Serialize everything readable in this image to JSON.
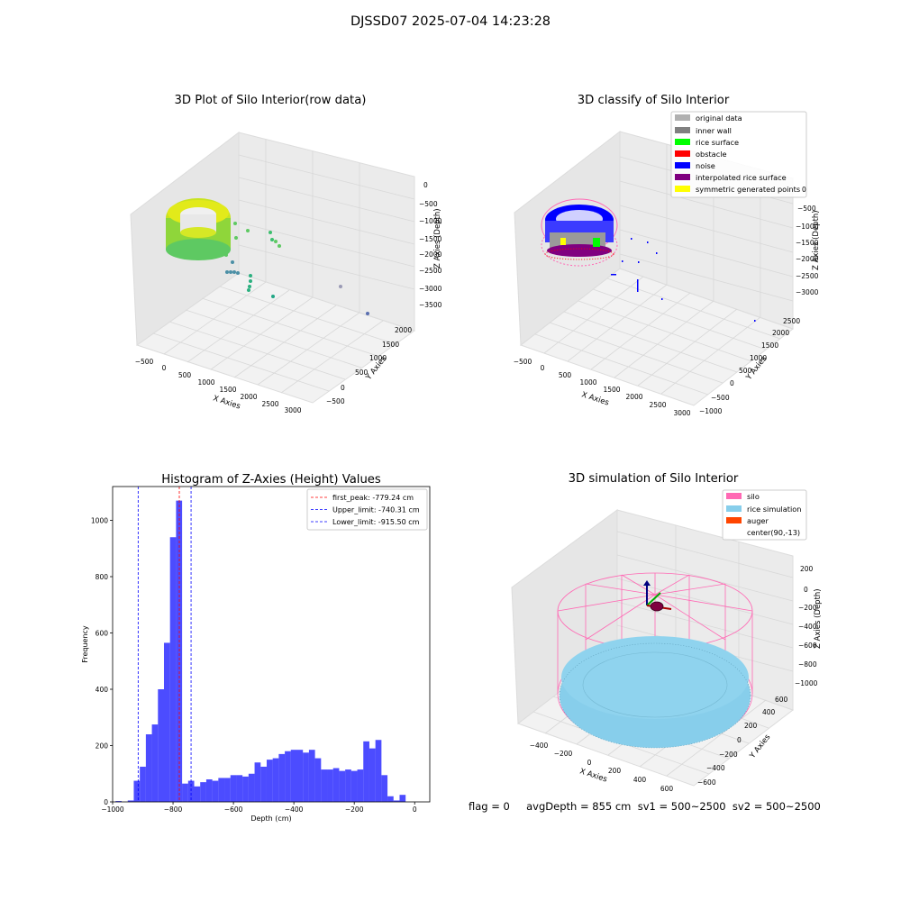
{
  "figure": {
    "suptitle": "DJSSD07 2025-07-04 14:23:28"
  },
  "panels": {
    "raw": {
      "title": "3D Plot of Silo Interior(row data)",
      "xlabel": "X Axies",
      "ylabel": "Y Axies",
      "zlabel": "Z Axies (Depth)",
      "xticks": [
        "−500",
        "0",
        "500",
        "1000",
        "1500",
        "2000",
        "2500",
        "3000"
      ],
      "yticks": [
        "−500",
        "0",
        "500",
        "1000",
        "1500",
        "2000"
      ],
      "zticks": [
        "0",
        "−500",
        "−1000",
        "−1500",
        "−2000",
        "−2500",
        "−3000",
        "−3500"
      ]
    },
    "classify": {
      "title": "3D classify of Silo Interior",
      "xlabel": "X Axies",
      "ylabel": "Y Axies",
      "zlabel": "Z Axies (Depth)",
      "xticks": [
        "−500",
        "0",
        "500",
        "1000",
        "1500",
        "2000",
        "2500",
        "3000"
      ],
      "yticks": [
        "−1000",
        "−500",
        "0",
        "500",
        "1000",
        "1500",
        "2000",
        "2500"
      ],
      "zticks": [
        "0",
        "−500",
        "−1000",
        "−1500",
        "−2000",
        "−2500",
        "−3000"
      ],
      "legend": [
        {
          "label": "original data",
          "color": "#b0b0b0"
        },
        {
          "label": "inner wall",
          "color": "#808080"
        },
        {
          "label": "rice surface",
          "color": "#00ff00"
        },
        {
          "label": "obstacle",
          "color": "#ff0000"
        },
        {
          "label": "noise",
          "color": "#0000ff"
        },
        {
          "label": "interpolated rice surface",
          "color": "#800080"
        },
        {
          "label": "symmetric generated points",
          "color": "#ffff00"
        }
      ]
    },
    "simulation": {
      "title": "3D simulation of Silo Interior",
      "xlabel": "X Axies",
      "ylabel": "Y Axies",
      "zlabel": "Z Axies (Depth)",
      "xticks": [
        "−400",
        "−200",
        "0",
        "200",
        "400",
        "600"
      ],
      "yticks": [
        "−600",
        "−400",
        "−200",
        "0",
        "200",
        "400",
        "600"
      ],
      "zticks": [
        "200",
        "0",
        "−200",
        "−400",
        "−600",
        "−800",
        "−1000"
      ],
      "legend": [
        {
          "label": "silo",
          "color": "#ff69b4"
        },
        {
          "label": "rice simulation",
          "color": "#87ceeb"
        },
        {
          "label": "auger",
          "color": "#ff4500"
        },
        {
          "label": "center(90,-13)",
          "color": ""
        }
      ]
    }
  },
  "status": {
    "text": "flag = 0     avgDepth = 855 cm  sv1 = 500~2500  sv2 = 500~2500"
  },
  "chart_data": [
    {
      "type": "histogram",
      "title": "Histogram of Z-Axies (Height) Values",
      "xlabel": "Depth (cm)",
      "ylabel": "Frequency",
      "xlim": [
        -1000,
        50
      ],
      "ylim": [
        0,
        1120
      ],
      "xticks": [
        -1000,
        -800,
        -600,
        -400,
        -200,
        0
      ],
      "yticks": [
        0,
        200,
        400,
        600,
        800,
        1000
      ],
      "bar_color": "#0000ff",
      "bins_start": -990,
      "bin_width": 20,
      "counts": [
        3,
        0,
        5,
        75,
        125,
        240,
        275,
        400,
        565,
        940,
        1070,
        65,
        75,
        55,
        70,
        80,
        75,
        85,
        85,
        95,
        95,
        90,
        100,
        140,
        125,
        150,
        155,
        170,
        180,
        185,
        185,
        175,
        185,
        155,
        115,
        115,
        120,
        110,
        115,
        110,
        115,
        215,
        190,
        220,
        95,
        20,
        5,
        25
      ],
      "lines": [
        {
          "label": "first_peak: -779.24 cm",
          "x": -779.24,
          "color": "#ff0000"
        },
        {
          "label": "Upper_limit: -740.31 cm",
          "x": -740.31,
          "color": "#0000ff"
        },
        {
          "label": "Lower_limit: -915.50 cm",
          "x": -915.5,
          "color": "#0000ff"
        }
      ],
      "legend_position": "upper right"
    }
  ]
}
